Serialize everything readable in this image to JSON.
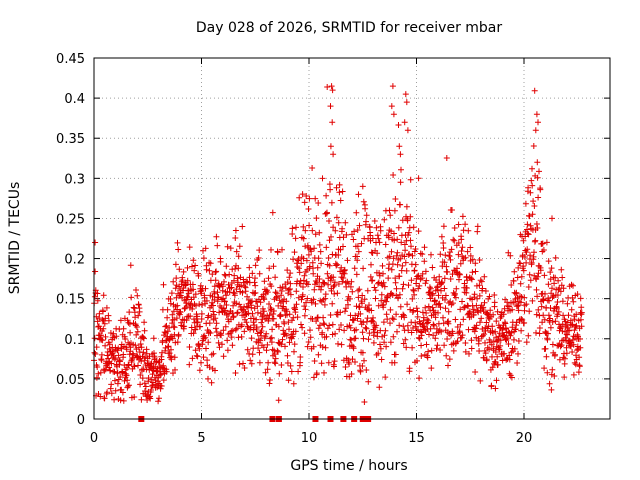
{
  "chart_data": {
    "type": "scatter",
    "title": "Day 028 of 2026, SRMTID for receiver mbar",
    "xlabel": "GPS time / hours",
    "ylabel": "SRMTID / TECUs",
    "xlim": [
      0,
      24
    ],
    "ylim": [
      0,
      0.45
    ],
    "grid": true,
    "marker": "+",
    "series_color": "#e00000",
    "x_ticks": [
      0,
      5,
      10,
      15,
      20
    ],
    "x_tick_labels": [
      "0",
      "5",
      "10",
      "15",
      "20"
    ],
    "y_ticks": [
      0,
      0.05,
      0.1,
      0.15,
      0.2,
      0.25,
      0.3,
      0.35,
      0.4,
      0.45
    ],
    "y_tick_labels": [
      "0",
      "0.05",
      "0.1",
      "0.15",
      "0.2",
      "0.25",
      "0.3",
      "0.35",
      "0.4",
      "0.45"
    ],
    "envelope_hours": [
      0,
      0.5,
      1,
      1.5,
      2,
      2.5,
      3,
      3.5,
      4,
      4.5,
      5,
      5.5,
      6,
      6.5,
      7,
      7.5,
      8,
      8.5,
      9,
      9.5,
      10,
      10.5,
      11,
      11.5,
      12,
      12.5,
      13,
      13.5,
      14,
      14.5,
      15,
      15.5,
      16,
      16.5,
      17,
      17.5,
      18,
      18.5,
      19,
      19.5,
      20,
      20.5,
      21,
      21.5,
      22,
      22.5
    ],
    "envelope_median": [
      0.11,
      0.08,
      0.07,
      0.075,
      0.09,
      0.06,
      0.05,
      0.1,
      0.15,
      0.14,
      0.13,
      0.13,
      0.15,
      0.15,
      0.14,
      0.13,
      0.13,
      0.12,
      0.13,
      0.16,
      0.17,
      0.14,
      0.19,
      0.17,
      0.14,
      0.17,
      0.16,
      0.16,
      0.17,
      0.17,
      0.15,
      0.13,
      0.14,
      0.16,
      0.17,
      0.16,
      0.13,
      0.1,
      0.1,
      0.12,
      0.18,
      0.24,
      0.15,
      0.12,
      0.11,
      0.11
    ],
    "envelope_spread": [
      0.06,
      0.04,
      0.03,
      0.035,
      0.04,
      0.025,
      0.02,
      0.035,
      0.04,
      0.045,
      0.045,
      0.045,
      0.045,
      0.045,
      0.045,
      0.045,
      0.045,
      0.045,
      0.05,
      0.06,
      0.06,
      0.05,
      0.08,
      0.07,
      0.06,
      0.08,
      0.06,
      0.07,
      0.09,
      0.08,
      0.05,
      0.05,
      0.05,
      0.05,
      0.05,
      0.05,
      0.05,
      0.03,
      0.03,
      0.04,
      0.06,
      0.09,
      0.06,
      0.04,
      0.03,
      0.03
    ],
    "peaks": [
      {
        "x": 11.05,
        "y": 0.415
      },
      {
        "x": 11.1,
        "y": 0.41
      },
      {
        "x": 11.0,
        "y": 0.39
      },
      {
        "x": 11.08,
        "y": 0.37
      },
      {
        "x": 11.02,
        "y": 0.34
      },
      {
        "x": 11.12,
        "y": 0.33
      },
      {
        "x": 13.9,
        "y": 0.415
      },
      {
        "x": 13.85,
        "y": 0.39
      },
      {
        "x": 13.95,
        "y": 0.38
      },
      {
        "x": 14.5,
        "y": 0.405
      },
      {
        "x": 14.55,
        "y": 0.395
      },
      {
        "x": 14.45,
        "y": 0.37
      },
      {
        "x": 14.2,
        "y": 0.34
      },
      {
        "x": 14.25,
        "y": 0.33
      },
      {
        "x": 14.6,
        "y": 0.36
      },
      {
        "x": 20.6,
        "y": 0.38
      },
      {
        "x": 20.65,
        "y": 0.37
      },
      {
        "x": 20.55,
        "y": 0.36
      },
      {
        "x": 20.62,
        "y": 0.32
      },
      {
        "x": 9.8,
        "y": 0.27
      },
      {
        "x": 12.5,
        "y": 0.29
      },
      {
        "x": 12.3,
        "y": 0.28
      },
      {
        "x": 15.1,
        "y": 0.3
      },
      {
        "x": 0.05,
        "y": 0.22
      },
      {
        "x": 6.6,
        "y": 0.235
      },
      {
        "x": 21.3,
        "y": 0.25
      }
    ],
    "zero_markers": [
      2.2,
      8.3,
      8.6,
      10.3,
      11.0,
      11.6,
      12.1,
      12.5,
      12.65,
      12.75
    ]
  }
}
